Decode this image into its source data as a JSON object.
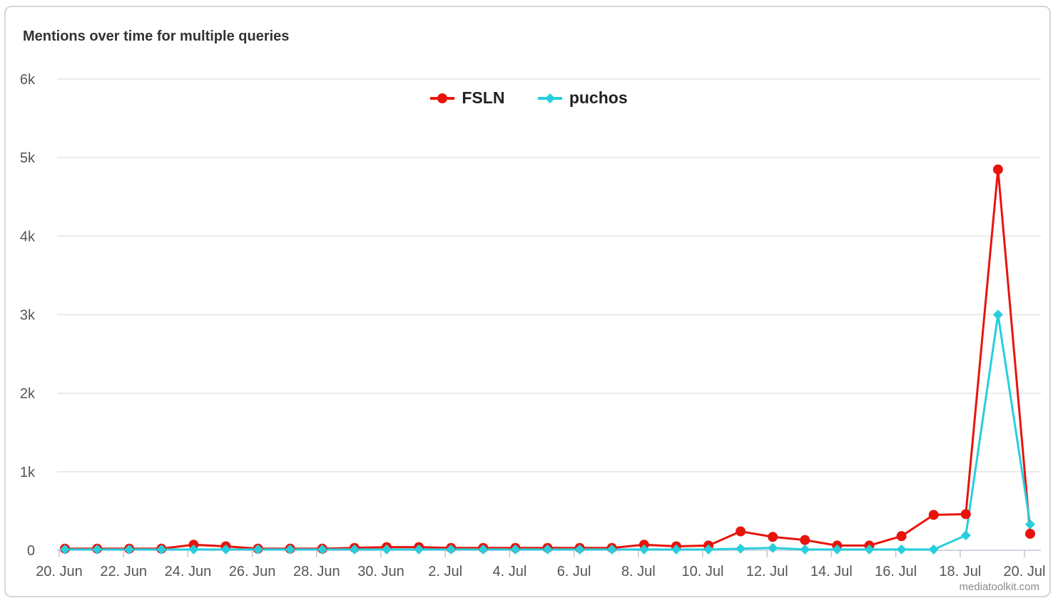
{
  "title": "Mentions over time for multiple queries",
  "credit": "mediatoolkit.com",
  "chart_data": {
    "type": "line",
    "title": "Mentions over time for multiple queries",
    "xlabel": "",
    "ylabel": "",
    "x": [
      "20. Jun",
      "21. Jun",
      "22. Jun",
      "23. Jun",
      "24. Jun",
      "25. Jun",
      "26. Jun",
      "27. Jun",
      "28. Jun",
      "29. Jun",
      "30. Jun",
      "1. Jul",
      "2. Jul",
      "3. Jul",
      "4. Jul",
      "5. Jul",
      "6. Jul",
      "7. Jul",
      "8. Jul",
      "9. Jul",
      "10. Jul",
      "11. Jul",
      "12. Jul",
      "13. Jul",
      "14. Jul",
      "15. Jul",
      "16. Jul",
      "17. Jul",
      "18. Jul",
      "19. Jul",
      "20. Jul"
    ],
    "x_tick_labels": [
      "20. Jun",
      "22. Jun",
      "24. Jun",
      "26. Jun",
      "28. Jun",
      "30. Jun",
      "2. Jul",
      "4. Jul",
      "6. Jul",
      "8. Jul",
      "10. Jul",
      "12. Jul",
      "14. Jul",
      "16. Jul",
      "18. Jul",
      "20. Jul"
    ],
    "y_tick_labels": [
      "0",
      "1k",
      "2k",
      "3k",
      "4k",
      "5k",
      "6k"
    ],
    "ylim": [
      0,
      6000
    ],
    "grid": true,
    "legend_position": "top-center",
    "series": [
      {
        "name": "FSLN",
        "color": "#e8140c",
        "marker": "circle",
        "values": [
          20,
          20,
          20,
          20,
          70,
          50,
          20,
          20,
          20,
          30,
          40,
          40,
          30,
          30,
          30,
          30,
          30,
          30,
          70,
          50,
          60,
          240,
          170,
          130,
          60,
          60,
          180,
          450,
          460,
          4850,
          210
        ]
      },
      {
        "name": "puchos",
        "color": "#27cfdc",
        "marker": "diamond",
        "values": [
          10,
          10,
          10,
          10,
          10,
          10,
          10,
          10,
          10,
          10,
          10,
          10,
          10,
          10,
          10,
          10,
          10,
          10,
          10,
          10,
          10,
          20,
          30,
          10,
          10,
          10,
          10,
          10,
          190,
          3000,
          330
        ]
      }
    ]
  }
}
